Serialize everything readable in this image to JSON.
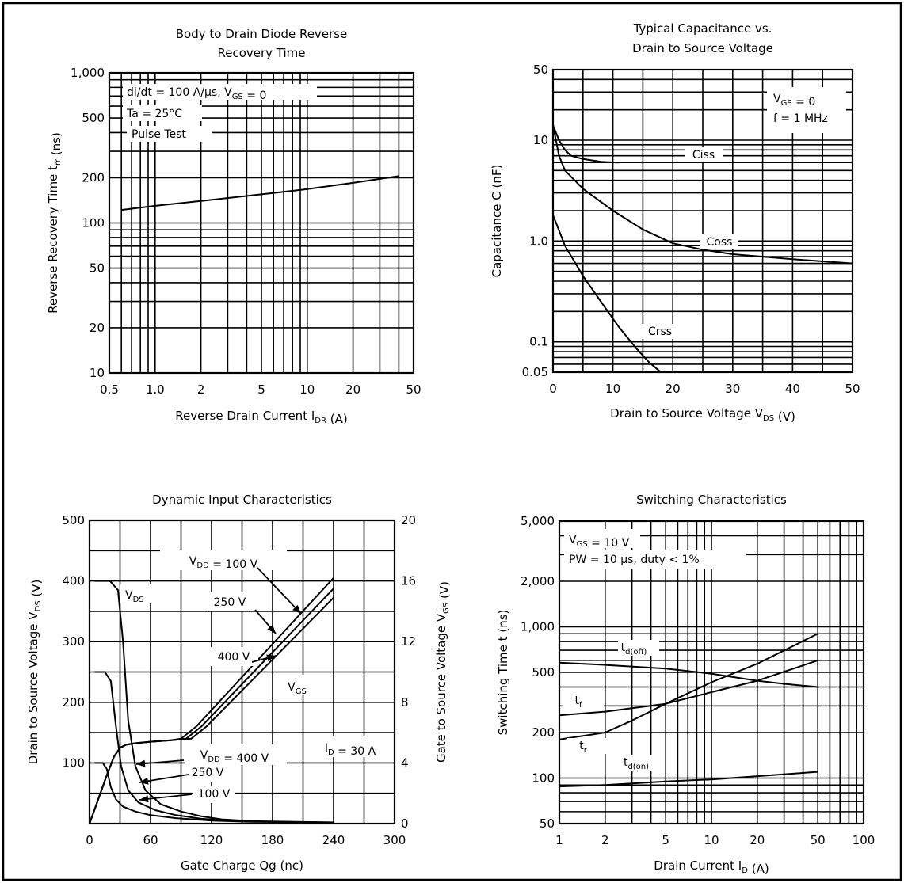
{
  "chart_data": [
    {
      "id": "tl",
      "type": "line",
      "title": [
        "Body to Drain Diode Reverse",
        "Recovery Time"
      ],
      "xlabel": "Reverse Drain Current  I_DR  (A)",
      "ylabel": "Reverse Recovery Time  t_rr  (ns)",
      "x_scale": "log",
      "y_scale": "log",
      "xlim": [
        0.5,
        50
      ],
      "ylim": [
        10,
        1000
      ],
      "x_ticks": [
        0.5,
        1,
        2,
        5,
        10,
        20,
        50
      ],
      "x_tick_labels": [
        "0.5",
        "1.0",
        "2",
        "5",
        "10",
        "20",
        "50"
      ],
      "y_ticks": [
        10,
        20,
        50,
        100,
        200,
        500,
        1000
      ],
      "y_tick_labels": [
        "10",
        "20",
        "50",
        "100",
        "200",
        "500",
        "1,000"
      ],
      "annotations": [
        "di/dt = 100 A/µs, V_GS = 0",
        "Ta = 25°C",
        "Pulse Test"
      ],
      "series": [
        {
          "label": "",
          "x": [
            0.6,
            1,
            2,
            5,
            10,
            20,
            40
          ],
          "y": [
            122,
            130,
            140,
            155,
            168,
            185,
            205
          ]
        }
      ]
    },
    {
      "id": "tr",
      "type": "line",
      "title": [
        "Typical Capacitance vs.",
        "Drain to Source Voltage"
      ],
      "xlabel": "Drain to Source Voltage  V_DS  (V)",
      "ylabel": "Capacitance  C  (nF)",
      "x_scale": "linear",
      "y_scale": "log",
      "xlim": [
        0,
        50
      ],
      "ylim": [
        0.05,
        50
      ],
      "x_ticks": [
        0,
        10,
        20,
        30,
        40,
        50
      ],
      "x_tick_labels": [
        "0",
        "10",
        "20",
        "30",
        "40",
        "50"
      ],
      "y_ticks": [
        0.05,
        0.1,
        1,
        10,
        50
      ],
      "y_tick_labels": [
        "0.05",
        "0.1",
        "1.0",
        "10",
        "50"
      ],
      "annotations": [
        "V_GS = 0",
        "f = 1 MHz"
      ],
      "series": [
        {
          "label": "Ciss",
          "x": [
            0,
            1,
            2,
            3,
            5,
            8,
            11
          ],
          "y": [
            14,
            10,
            8,
            7,
            6.5,
            6.1,
            6.0
          ]
        },
        {
          "label": "Coss",
          "x": [
            0,
            1,
            2,
            5,
            10,
            15,
            20,
            25,
            30,
            40,
            50
          ],
          "y": [
            14,
            7,
            5,
            3.3,
            2.0,
            1.3,
            0.95,
            0.82,
            0.74,
            0.66,
            0.6
          ]
        },
        {
          "label": "Crss",
          "x": [
            0,
            2,
            5,
            8,
            11,
            14,
            16,
            18
          ],
          "y": [
            1.8,
            0.9,
            0.45,
            0.25,
            0.14,
            0.085,
            0.063,
            0.05
          ]
        }
      ]
    },
    {
      "id": "bl",
      "type": "line",
      "title": [
        "Dynamic Input Characteristics"
      ],
      "xlabel": "Gate Charge  Qg  (nc)",
      "ylabel": "Drain to Source Voltage  V_DS  (V)",
      "ylabel_right": "Gate to Source Voltage  V_GS  (V)",
      "x_scale": "linear",
      "y_scale": "linear",
      "xlim": [
        0,
        300
      ],
      "ylim": [
        0,
        500
      ],
      "ylim_right": [
        0,
        20
      ],
      "x_ticks": [
        0,
        60,
        120,
        180,
        240,
        300
      ],
      "x_tick_labels": [
        "0",
        "60",
        "120",
        "180",
        "240",
        "300"
      ],
      "y_ticks": [
        100,
        200,
        300,
        400,
        500
      ],
      "y_tick_labels": [
        "100",
        "200",
        "300",
        "400",
        "500"
      ],
      "y_ticks_right": [
        0,
        4,
        8,
        12,
        16,
        20
      ],
      "y_tick_labels_right": [
        "0",
        "4",
        "8",
        "12",
        "16",
        "20"
      ],
      "annotations": [
        "I_D = 30 A",
        "V_DS",
        "V_GS",
        "V_DD = 100 V",
        "250 V",
        "400 V",
        "V_DD = 400 V",
        "250 V",
        "100 V"
      ],
      "series": [
        {
          "label": "V_DS, V_DD = 400 V",
          "x": [
            5,
            20,
            28,
            33,
            38,
            45,
            55,
            70,
            90,
            110,
            130,
            160,
            240
          ],
          "y": [
            400,
            400,
            385,
            300,
            170,
            95,
            55,
            32,
            20,
            12,
            7,
            4,
            2
          ]
        },
        {
          "label": "V_DS, V_DD = 250 V",
          "x": [
            5,
            15,
            21,
            26,
            31,
            38,
            48,
            65,
            85,
            110,
            140,
            180,
            240
          ],
          "y": [
            250,
            250,
            235,
            160,
            95,
            55,
            35,
            22,
            14,
            8,
            5,
            3,
            2
          ]
        },
        {
          "label": "V_DS, V_DD = 100 V",
          "x": [
            5,
            13,
            17,
            21,
            26,
            33,
            45,
            60,
            85,
            120,
            160,
            240
          ],
          "y": [
            100,
            100,
            90,
            60,
            40,
            28,
            20,
            14,
            9,
            5,
            3,
            2
          ]
        },
        {
          "label": "V_GS, V_DD = 100 V",
          "x": [
            0,
            8,
            16,
            24,
            30,
            36,
            45,
            60,
            80,
            90,
            105,
            240
          ],
          "y": [
            0,
            1.5,
            3,
            4.4,
            5.0,
            5.2,
            5.3,
            5.4,
            5.5,
            5.6,
            6.4,
            16.2
          ]
        },
        {
          "label": "V_GS, V_DD = 250 V",
          "x": [
            0,
            8,
            16,
            24,
            30,
            36,
            45,
            60,
            80,
            95,
            110,
            240
          ],
          "y": [
            0,
            1.5,
            3,
            4.4,
            5.0,
            5.2,
            5.3,
            5.4,
            5.5,
            5.6,
            6.4,
            15.5
          ]
        },
        {
          "label": "V_GS, V_DD = 400 V",
          "x": [
            0,
            8,
            16,
            24,
            30,
            36,
            45,
            60,
            80,
            100,
            115,
            240
          ],
          "y": [
            0,
            1.5,
            3,
            4.4,
            5.0,
            5.2,
            5.3,
            5.4,
            5.5,
            5.6,
            6.4,
            14.9
          ]
        }
      ]
    },
    {
      "id": "br",
      "type": "line",
      "title": [
        "Switching Characteristics"
      ],
      "xlabel": "Drain Current  I_D  (A)",
      "ylabel": "Switching Time  t  (ns)",
      "x_scale": "log",
      "y_scale": "log",
      "xlim": [
        1,
        100
      ],
      "ylim": [
        50,
        5000
      ],
      "x_ticks": [
        1,
        2,
        5,
        10,
        20,
        50,
        100
      ],
      "x_tick_labels": [
        "1",
        "2",
        "5",
        "10",
        "20",
        "50",
        "100"
      ],
      "y_ticks": [
        50,
        100,
        200,
        500,
        1000,
        2000,
        5000
      ],
      "y_tick_labels": [
        "50",
        "100",
        "200",
        "500",
        "1,000",
        "2,000",
        "5,000"
      ],
      "annotations": [
        "V_GS = 10 V",
        "PW = 10 µs, duty < 1%"
      ],
      "series": [
        {
          "label": "t_d(off)",
          "x": [
            1,
            2,
            5,
            10,
            20,
            30,
            50
          ],
          "y": [
            580,
            560,
            530,
            490,
            440,
            420,
            400
          ]
        },
        {
          "label": "t_f",
          "x": [
            1,
            2,
            5,
            10,
            20,
            50
          ],
          "y": [
            260,
            275,
            310,
            370,
            440,
            600
          ]
        },
        {
          "label": "t_r",
          "x": [
            1,
            2,
            3,
            5,
            10,
            20,
            50
          ],
          "y": [
            180,
            200,
            240,
            310,
            430,
            570,
            900
          ]
        },
        {
          "label": "t_d(on)",
          "x": [
            1,
            2,
            5,
            10,
            20,
            50
          ],
          "y": [
            88,
            90,
            95,
            98,
            103,
            110
          ]
        }
      ]
    }
  ]
}
